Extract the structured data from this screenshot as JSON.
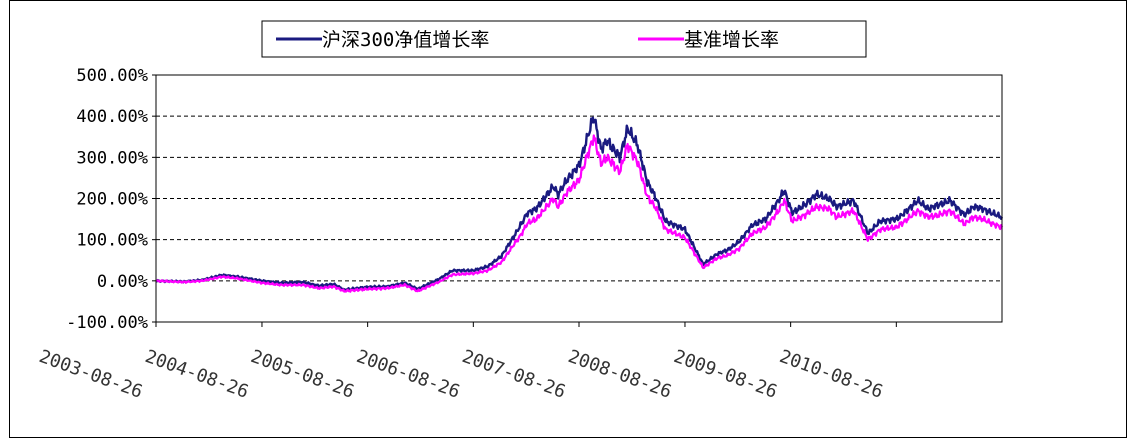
{
  "chart_data": {
    "type": "line",
    "legend": {
      "placement": "top-center",
      "items": [
        {
          "label": "沪深300净值增长率",
          "color": "#1a1a80"
        },
        {
          "label": "基准增长率",
          "color": "#ff00ff"
        }
      ]
    },
    "ylim": [
      -100,
      500
    ],
    "yticks": [
      "500.00%",
      "400.00%",
      "300.00%",
      "200.00%",
      "100.00%",
      "0.00%",
      "-100.00%"
    ],
    "ytick_values": [
      500,
      400,
      300,
      200,
      100,
      0,
      -100
    ],
    "xticks": [
      "2003-08-26",
      "2004-08-26",
      "2005-08-26",
      "2006-08-26",
      "2007-08-26",
      "2008-08-26",
      "2009-08-26",
      "2010-08-26"
    ],
    "xlim": [
      "2003-08-26",
      "2011-08-26"
    ],
    "grid": {
      "horizontal": "dashed",
      "vertical": false
    },
    "series": [
      {
        "name": "沪深300净值增长率",
        "color": "#1a1a80",
        "x": [
          "2003-08-26",
          "2003-12-01",
          "2004-02-01",
          "2004-04-10",
          "2004-06-01",
          "2004-08-26",
          "2004-11-01",
          "2005-01-15",
          "2005-03-10",
          "2005-05-01",
          "2005-06-06",
          "2005-08-26",
          "2005-11-01",
          "2006-01-01",
          "2006-02-15",
          "2006-05-01",
          "2006-06-15",
          "2006-08-26",
          "2006-10-15",
          "2006-12-01",
          "2007-01-15",
          "2007-02-05",
          "2007-03-01",
          "2007-04-01",
          "2007-05-29",
          "2007-06-15",
          "2007-07-15",
          "2007-08-26",
          "2007-10-16",
          "2007-11-10",
          "2007-12-01",
          "2008-01-14",
          "2008-02-10",
          "2008-03-15",
          "2008-04-18",
          "2008-05-15",
          "2008-06-20",
          "2008-08-26",
          "2008-10-28",
          "2008-12-15",
          "2009-01-20",
          "2009-03-01",
          "2009-04-15",
          "2009-06-01",
          "2009-07-15",
          "2009-08-04",
          "2009-08-31",
          "2009-10-15",
          "2009-11-23",
          "2010-01-05",
          "2010-02-01",
          "2010-04-01",
          "2010-05-20",
          "2010-07-02",
          "2010-08-26",
          "2010-09-15",
          "2010-11-08",
          "2010-12-15",
          "2011-01-20",
          "2011-02-28",
          "2011-04-18",
          "2011-05-20",
          "2011-06-20",
          "2011-07-20",
          "2011-08-26"
        ],
        "values": [
          0,
          -2,
          2,
          14,
          10,
          0,
          -5,
          -3,
          -12,
          -8,
          -22,
          -15,
          -14,
          -5,
          -20,
          5,
          25,
          25,
          35,
          60,
          110,
          135,
          165,
          175,
          230,
          210,
          245,
          280,
          400,
          320,
          340,
          300,
          370,
          330,
          240,
          205,
          145,
          125,
          40,
          65,
          75,
          95,
          135,
          150,
          195,
          220,
          165,
          185,
          210,
          200,
          180,
          195,
          115,
          145,
          150,
          160,
          195,
          175,
          185,
          195,
          160,
          180,
          175,
          165,
          155
        ]
      },
      {
        "name": "基准增长率",
        "color": "#ff00ff",
        "x": [
          "2003-08-26",
          "2003-12-01",
          "2004-02-01",
          "2004-04-10",
          "2004-06-01",
          "2004-08-26",
          "2004-11-01",
          "2005-01-15",
          "2005-03-10",
          "2005-05-01",
          "2005-06-06",
          "2005-08-26",
          "2005-11-01",
          "2006-01-01",
          "2006-02-15",
          "2006-05-01",
          "2006-06-15",
          "2006-08-26",
          "2006-10-15",
          "2006-12-01",
          "2007-01-15",
          "2007-02-05",
          "2007-03-01",
          "2007-04-01",
          "2007-05-29",
          "2007-06-15",
          "2007-07-15",
          "2007-08-26",
          "2007-10-16",
          "2007-11-10",
          "2007-12-01",
          "2008-01-14",
          "2008-02-10",
          "2008-03-15",
          "2008-04-18",
          "2008-05-15",
          "2008-06-20",
          "2008-08-26",
          "2008-10-28",
          "2008-12-15",
          "2009-01-20",
          "2009-03-01",
          "2009-04-15",
          "2009-06-01",
          "2009-07-15",
          "2009-08-04",
          "2009-08-31",
          "2009-10-15",
          "2009-11-23",
          "2010-01-05",
          "2010-02-01",
          "2010-04-01",
          "2010-05-20",
          "2010-07-02",
          "2010-08-26",
          "2010-09-15",
          "2010-11-08",
          "2010-12-15",
          "2011-01-20",
          "2011-02-28",
          "2011-04-18",
          "2011-05-20",
          "2011-06-20",
          "2011-07-20",
          "2011-08-26"
        ],
        "values": [
          0,
          -3,
          0,
          10,
          6,
          -5,
          -10,
          -10,
          -18,
          -14,
          -25,
          -20,
          -18,
          -10,
          -25,
          -2,
          15,
          18,
          25,
          45,
          90,
          110,
          140,
          150,
          200,
          180,
          215,
          245,
          350,
          285,
          300,
          265,
          330,
          290,
          205,
          180,
          125,
          105,
          32,
          55,
          62,
          78,
          115,
          130,
          170,
          195,
          145,
          160,
          180,
          175,
          155,
          170,
          100,
          125,
          130,
          140,
          170,
          155,
          160,
          170,
          138,
          155,
          150,
          140,
          130
        ]
      }
    ]
  }
}
